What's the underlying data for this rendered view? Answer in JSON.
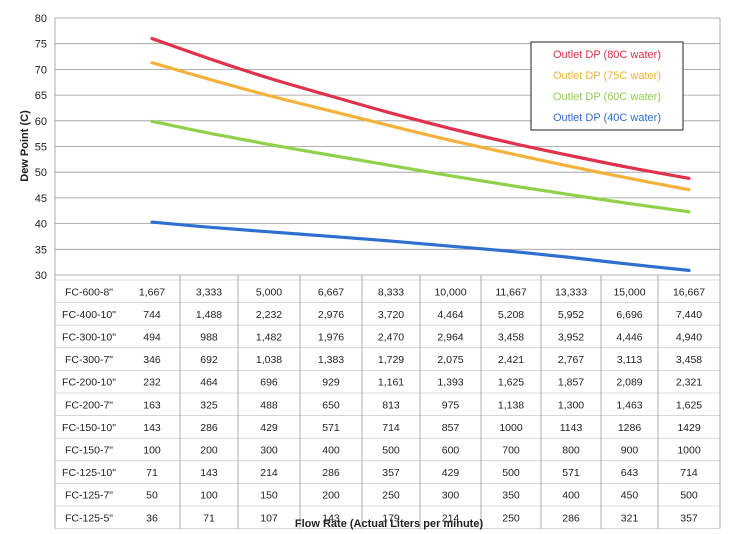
{
  "chart_data": {
    "type": "line",
    "title": "",
    "xlabel": "Flow Rate (Actual Liters per minute)",
    "ylabel": "Dew Point (C)",
    "ylim": [
      30,
      80
    ],
    "yticks": [
      30,
      35,
      40,
      45,
      50,
      55,
      60,
      65,
      70,
      75,
      80
    ],
    "grid": true,
    "legend_position": "top-right",
    "x_points": 10,
    "series": [
      {
        "name": "Outlet DP (80C water)",
        "color": "#e0324a",
        "values": [
          76,
          72.1,
          68.3,
          64.8,
          61.5,
          58.5,
          55.7,
          53.2,
          50.9,
          48.8
        ]
      },
      {
        "name": "Outlet DP (75C water)",
        "color": "#f4b23c",
        "values": [
          71.3,
          68.1,
          64.9,
          61.9,
          59.0,
          56.2,
          53.6,
          51.1,
          48.8,
          46.6
        ]
      },
      {
        "name": "Outlet DP (60C water)",
        "color": "#8fd14a",
        "values": [
          59.9,
          57.6,
          55.4,
          53.3,
          51.3,
          49.3,
          47.4,
          45.6,
          43.9,
          42.3
        ]
      },
      {
        "name": "Outlet DP (40C water)",
        "color": "#2f6fd0",
        "values": [
          40.3,
          39.3,
          38.4,
          37.5,
          36.6,
          35.6,
          34.6,
          33.4,
          32.1,
          30.9
        ]
      }
    ],
    "table": {
      "rows": [
        {
          "label": "FC-600-8\"",
          "values": [
            "1,667",
            "3,333",
            "5,000",
            "6,667",
            "8,333",
            "10,000",
            "11,667",
            "13,333",
            "15,000",
            "16,667"
          ]
        },
        {
          "label": "FC-400-10\"",
          "values": [
            "744",
            "1,488",
            "2,232",
            "2,976",
            "3,720",
            "4,464",
            "5,208",
            "5,952",
            "6,696",
            "7,440"
          ]
        },
        {
          "label": "FC-300-10\"",
          "values": [
            "494",
            "988",
            "1,482",
            "1,976",
            "2,470",
            "2,964",
            "3,458",
            "3,952",
            "4,446",
            "4,940"
          ]
        },
        {
          "label": "FC-300-7\"",
          "values": [
            "346",
            "692",
            "1,038",
            "1,383",
            "1,729",
            "2,075",
            "2,421",
            "2,767",
            "3,113",
            "3,458"
          ]
        },
        {
          "label": "FC-200-10\"",
          "values": [
            "232",
            "464",
            "696",
            "929",
            "1,161",
            "1,393",
            "1,625",
            "1,857",
            "2,089",
            "2,321"
          ]
        },
        {
          "label": "FC-200-7\"",
          "values": [
            "163",
            "325",
            "488",
            "650",
            "813",
            "975",
            "1,138",
            "1,300",
            "1,463",
            "1,625"
          ]
        },
        {
          "label": "FC-150-10\"",
          "values": [
            "143",
            "286",
            "429",
            "571",
            "714",
            "857",
            "1000",
            "1143",
            "1286",
            "1429"
          ]
        },
        {
          "label": "FC-150-7\"",
          "values": [
            "100",
            "200",
            "300",
            "400",
            "500",
            "600",
            "700",
            "800",
            "900",
            "1000"
          ]
        },
        {
          "label": "FC-125-10\"",
          "values": [
            "71",
            "143",
            "214",
            "286",
            "357",
            "429",
            "500",
            "571",
            "643",
            "714"
          ]
        },
        {
          "label": "FC-125-7\"",
          "values": [
            "50",
            "100",
            "150",
            "200",
            "250",
            "300",
            "350",
            "400",
            "450",
            "500"
          ]
        },
        {
          "label": "FC-125-5\"",
          "values": [
            "36",
            "71",
            "107",
            "143",
            "179",
            "214",
            "250",
            "286",
            "321",
            "357"
          ]
        }
      ]
    }
  }
}
